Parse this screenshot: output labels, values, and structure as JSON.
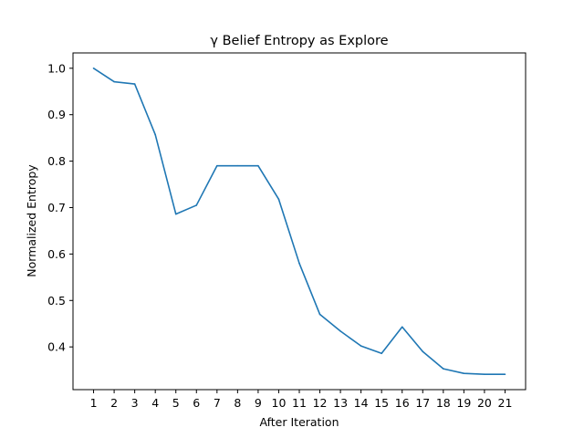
{
  "chart_data": {
    "type": "line",
    "title": "γ Belief Entropy as Explore",
    "xlabel": "After Iteration",
    "ylabel": "Normalized Entropy",
    "x": [
      1,
      2,
      3,
      4,
      5,
      6,
      7,
      8,
      9,
      10,
      11,
      12,
      13,
      14,
      15,
      16,
      17,
      18,
      19,
      20,
      21
    ],
    "series": [
      {
        "values": [
          1.0,
          0.971,
          0.966,
          0.857,
          0.686,
          0.705,
          0.79,
          0.79,
          0.79,
          0.718,
          0.58,
          0.47,
          0.434,
          0.402,
          0.386,
          0.443,
          0.39,
          0.353,
          0.343,
          0.341,
          0.341
        ],
        "color": "#1f77b4"
      }
    ],
    "xticks": [
      "1",
      "2",
      "3",
      "4",
      "5",
      "6",
      "7",
      "8",
      "9",
      "10",
      "11",
      "12",
      "13",
      "14",
      "15",
      "16",
      "17",
      "18",
      "19",
      "20",
      "21"
    ],
    "yticks": [
      "0.4",
      "0.5",
      "0.6",
      "0.7",
      "0.8",
      "0.9",
      "1.0"
    ],
    "xlim": [
      0,
      22
    ],
    "ylim": [
      0.308,
      1.033
    ],
    "grid": false
  }
}
